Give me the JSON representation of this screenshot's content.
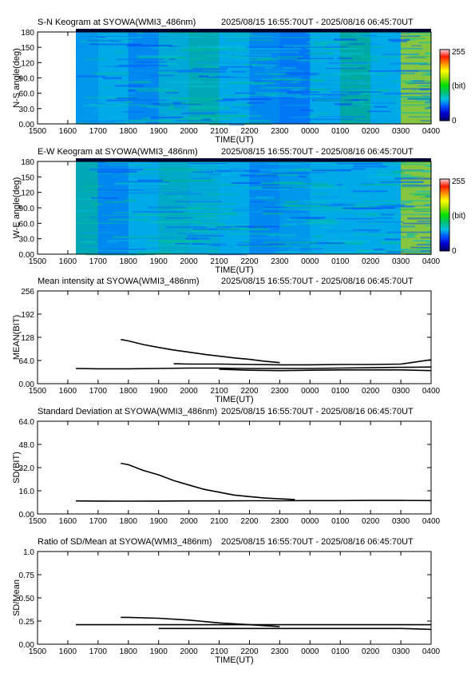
{
  "figure": {
    "station": "SYOWA",
    "instrument": "WMI3_486nm",
    "time_range": "2025/08/15 16:55:70UT - 2025/08/16 06:45:70UT"
  },
  "colorbar": {
    "max_label": "255",
    "unit_label": "(bit)",
    "min_label": "0",
    "colors": [
      "#000060",
      "#0000d0",
      "#0050ff",
      "#00c0e0",
      "#00c070",
      "#00e000",
      "#a0e000",
      "#ffff00",
      "#ff9000",
      "#ff1800",
      "#ffd8e0"
    ]
  },
  "chart_data": [
    {
      "type": "heatmap",
      "title": "S-N Keogram at SYOWA(WMI3_486nm)",
      "subtitle": "2025/08/15 16:55:70UT - 2025/08/16 06:45:70UT",
      "xlabel": "TIME(UT)",
      "ylabel": "N-S angle(deg)",
      "x_ticks": [
        "1500",
        "1600",
        "1700",
        "1800",
        "1900",
        "2000",
        "2100",
        "2200",
        "2300",
        "0000",
        "0100",
        "0200",
        "0300",
        "0400"
      ],
      "y_ticks": [
        "0.00",
        "30.0",
        "60.0",
        "90.0",
        "120",
        "150",
        "180"
      ],
      "ylim": [
        0,
        180
      ],
      "data_start": "1616",
      "data_end": "0400",
      "hour_brightness": [
        {
          "hour": "1600",
          "level": 0.28
        },
        {
          "hour": "1700",
          "level": 0.3
        },
        {
          "hour": "1800",
          "level": 0.26
        },
        {
          "hour": "1900",
          "level": 0.32
        },
        {
          "hour": "2000",
          "level": 0.36
        },
        {
          "hour": "2100",
          "level": 0.3
        },
        {
          "hour": "2200",
          "level": 0.26
        },
        {
          "hour": "2300",
          "level": 0.24
        },
        {
          "hour": "0000",
          "level": 0.3
        },
        {
          "hour": "0100",
          "level": 0.38
        },
        {
          "hour": "0200",
          "level": 0.3
        },
        {
          "hour": "0300",
          "level": 0.62
        }
      ]
    },
    {
      "type": "heatmap",
      "title": "E-W Keogram at SYOWA(WMI3_486nm)",
      "subtitle": "2025/08/15 16:55:70UT - 2025/08/16 06:45:70UT",
      "xlabel": "TIME(UT)",
      "ylabel": "W-E angle(deg)",
      "x_ticks": [
        "1500",
        "1600",
        "1700",
        "1800",
        "1900",
        "2000",
        "2100",
        "2200",
        "2300",
        "0000",
        "0100",
        "0200",
        "0300",
        "0400"
      ],
      "y_ticks": [
        "0.00",
        "30.0",
        "60.0",
        "90.0",
        "120",
        "150",
        "180"
      ],
      "ylim": [
        0,
        180
      ],
      "data_start": "1616",
      "data_end": "0400",
      "hour_brightness": [
        {
          "hour": "1600",
          "level": 0.36
        },
        {
          "hour": "1700",
          "level": 0.26
        },
        {
          "hour": "1800",
          "level": 0.3
        },
        {
          "hour": "1900",
          "level": 0.34
        },
        {
          "hour": "2000",
          "level": 0.32
        },
        {
          "hour": "2100",
          "level": 0.3
        },
        {
          "hour": "2200",
          "level": 0.26
        },
        {
          "hour": "2300",
          "level": 0.28
        },
        {
          "hour": "0000",
          "level": 0.3
        },
        {
          "hour": "0100",
          "level": 0.3
        },
        {
          "hour": "0200",
          "level": 0.3
        },
        {
          "hour": "0300",
          "level": 0.62
        }
      ]
    },
    {
      "type": "line",
      "title": "Mean intensity at SYOWA(WMI3_486nm)",
      "subtitle": "2025/08/15 16:55:70UT - 2025/08/16 06:45:70UT",
      "xlabel": "TIME(UT)",
      "ylabel": "MEAN(BIT)",
      "x_ticks": [
        "1500",
        "1600",
        "1700",
        "1800",
        "1900",
        "2000",
        "2100",
        "2200",
        "2300",
        "0000",
        "0100",
        "0200",
        "0300",
        "0400"
      ],
      "y_ticks": [
        "0.00",
        "64.0",
        "128",
        "192",
        "256"
      ],
      "ylim": [
        0,
        256
      ],
      "series": [
        {
          "x": [
            "1616",
            "1700",
            "1800",
            "1900",
            "2000",
            "2100",
            "2200",
            "2300",
            "0000",
            "0100",
            "0200",
            "0300",
            "0400"
          ],
          "y": [
            42,
            41,
            41,
            42,
            43,
            43,
            42,
            42,
            42,
            43,
            44,
            45,
            46
          ]
        },
        {
          "x": [
            "1745",
            "1800",
            "1830",
            "1900",
            "1930",
            "2000",
            "2030",
            "2100",
            "2130",
            "2200",
            "2230",
            "2300"
          ],
          "y": [
            122,
            118,
            108,
            100,
            93,
            87,
            81,
            76,
            71,
            67,
            62,
            58
          ]
        },
        {
          "x": [
            "1930",
            "2000",
            "2100",
            "2200",
            "2300",
            "0000",
            "0100",
            "0200",
            "0300",
            "0330",
            "0400"
          ],
          "y": [
            55,
            54,
            54,
            53,
            52,
            52,
            53,
            53,
            54,
            60,
            66
          ]
        },
        {
          "x": [
            "2100",
            "2200",
            "2300",
            "0000",
            "0100",
            "0200",
            "0300",
            "0400"
          ],
          "y": [
            40,
            37,
            36,
            37,
            38,
            38,
            38,
            36
          ]
        }
      ]
    },
    {
      "type": "line",
      "title": "Standard Deviation at SYOWA(WMI3_486nm)",
      "subtitle": "2025/08/15 16:55:70UT - 2025/08/16 06:45:70UT",
      "xlabel": "",
      "ylabel": "SD(BIT)",
      "x_ticks": [
        "1500",
        "1600",
        "1700",
        "1800",
        "1900",
        "2000",
        "2100",
        "2200",
        "2300",
        "0000",
        "0100",
        "0200",
        "0300",
        "0400"
      ],
      "y_ticks": [
        "0.00",
        "16.0",
        "32.0",
        "48.0",
        "64.0"
      ],
      "ylim": [
        0,
        64
      ],
      "series": [
        {
          "x": [
            "1616",
            "1700",
            "1800",
            "1900",
            "2000",
            "2100",
            "2200",
            "2300",
            "0000",
            "0100",
            "0200",
            "0300",
            "0400"
          ],
          "y": [
            9.0,
            8.9,
            8.8,
            8.9,
            9.0,
            9.0,
            9.1,
            9.1,
            9.2,
            9.2,
            9.3,
            9.3,
            9.2
          ]
        },
        {
          "x": [
            "1745",
            "1800",
            "1830",
            "1900",
            "1930",
            "2000",
            "2030",
            "2100",
            "2130",
            "2200",
            "2230",
            "2300",
            "2330"
          ],
          "y": [
            35,
            34,
            30,
            27,
            23,
            20,
            17,
            15,
            13,
            12,
            11,
            10.5,
            10
          ]
        }
      ]
    },
    {
      "type": "line",
      "title": "Ratio of SD/Mean at SYOWA(WMI3_486nm)",
      "subtitle": "2025/08/15 16:55:70UT - 2025/08/16 06:45:70UT",
      "xlabel": "TIME(UT)",
      "ylabel": "SD/Mean",
      "x_ticks": [
        "1500",
        "1600",
        "1700",
        "1800",
        "1900",
        "2000",
        "2100",
        "2200",
        "2300",
        "0000",
        "0100",
        "0200",
        "0300",
        "0400"
      ],
      "y_ticks": [
        "0.00",
        "0.25",
        "0.50",
        "0.75",
        "1.0"
      ],
      "ylim": [
        0,
        1.0
      ],
      "series": [
        {
          "x": [
            "1616",
            "1700",
            "1800",
            "1900",
            "2000",
            "2100",
            "2200",
            "2300",
            "0000",
            "0100",
            "0200",
            "0300",
            "0400"
          ],
          "y": [
            0.21,
            0.21,
            0.21,
            0.21,
            0.21,
            0.21,
            0.21,
            0.21,
            0.21,
            0.21,
            0.21,
            0.21,
            0.21
          ]
        },
        {
          "x": [
            "1745",
            "1800",
            "1900",
            "2000",
            "2100",
            "2200",
            "2300"
          ],
          "y": [
            0.29,
            0.29,
            0.28,
            0.26,
            0.23,
            0.21,
            0.19
          ]
        },
        {
          "x": [
            "1900",
            "2000",
            "2100",
            "2200",
            "2300",
            "0000",
            "0100",
            "0200",
            "0300",
            "0400"
          ],
          "y": [
            0.17,
            0.17,
            0.17,
            0.17,
            0.17,
            0.17,
            0.17,
            0.17,
            0.17,
            0.16
          ]
        }
      ]
    }
  ]
}
